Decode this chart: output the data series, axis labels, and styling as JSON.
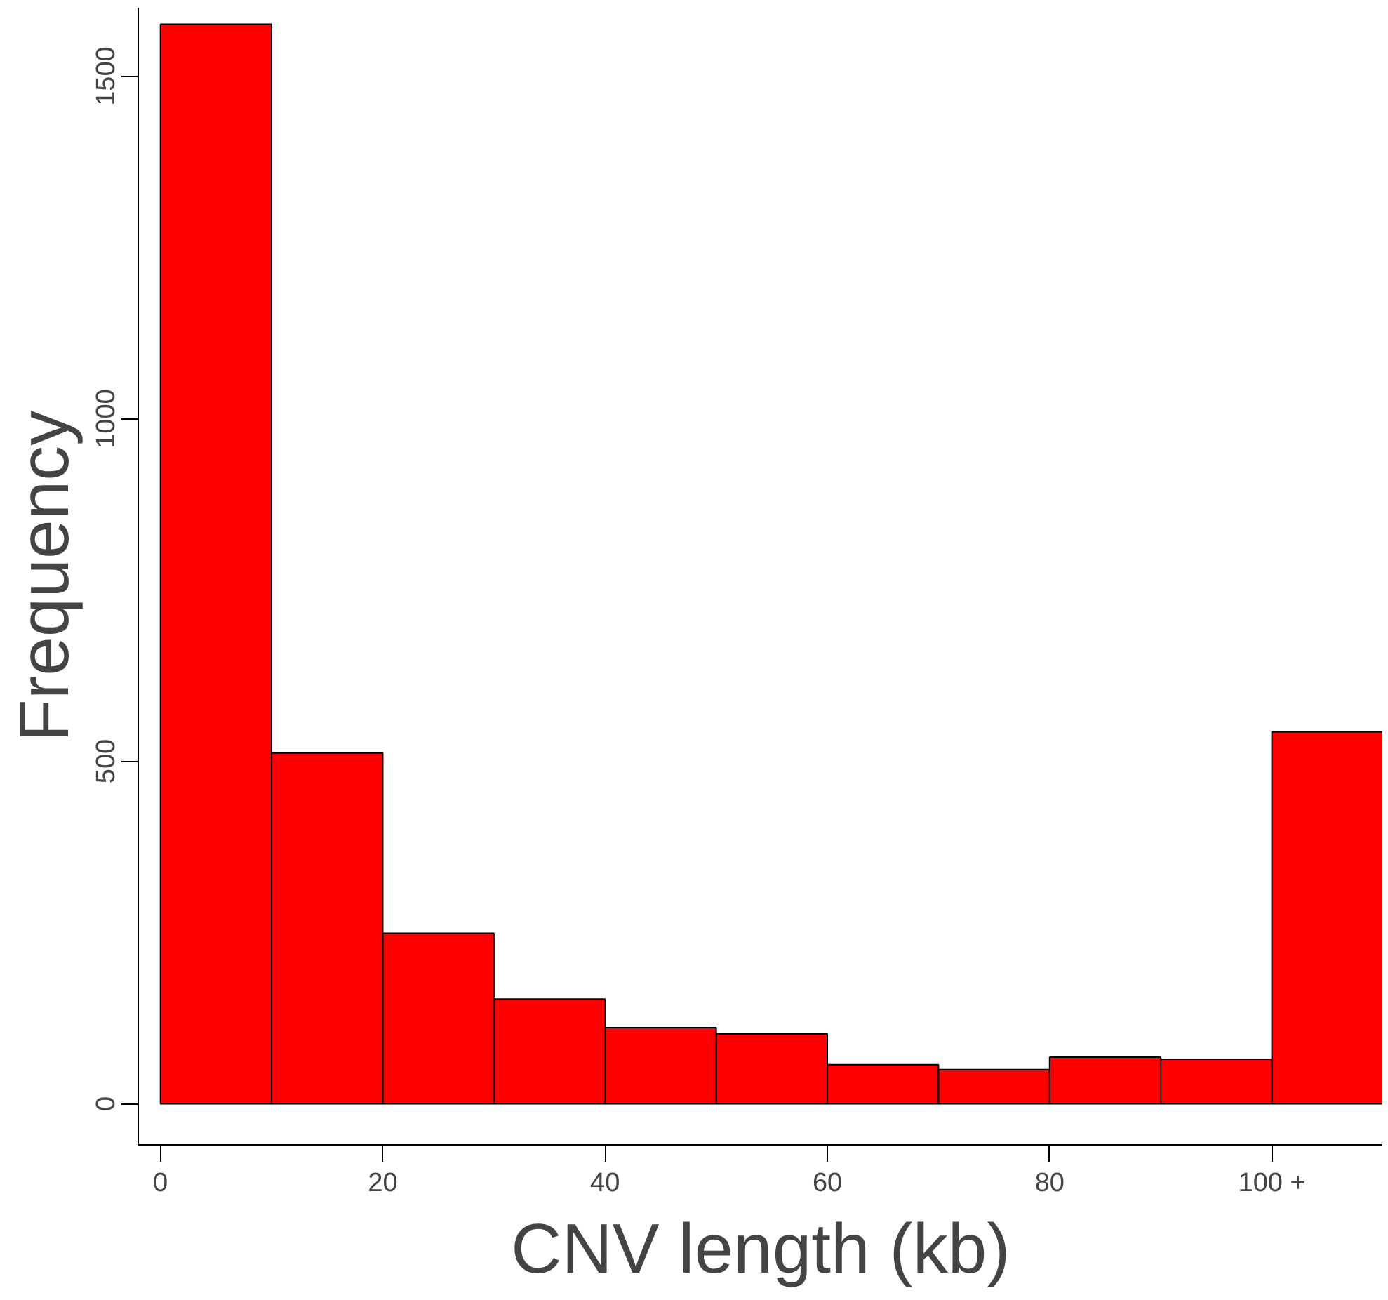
{
  "chart_data": {
    "type": "histogram",
    "xlabel": "CNV length (kb)",
    "ylabel": "Frequency",
    "bins": [
      0,
      10,
      20,
      30,
      40,
      50,
      60,
      70,
      80,
      90,
      100,
      110
    ],
    "values": [
      1576,
      512,
      249,
      153,
      111,
      102,
      57,
      50,
      68,
      65,
      543
    ],
    "color": "#ff0000",
    "xlim": [
      -2,
      110
    ],
    "ylim": [
      -60,
      1600
    ],
    "xticks": [
      0,
      20,
      40,
      60,
      80,
      {
        "value": 100,
        "label": "100 +"
      }
    ],
    "yticks": [
      0,
      500,
      1000,
      1500
    ],
    "grid": false
  }
}
